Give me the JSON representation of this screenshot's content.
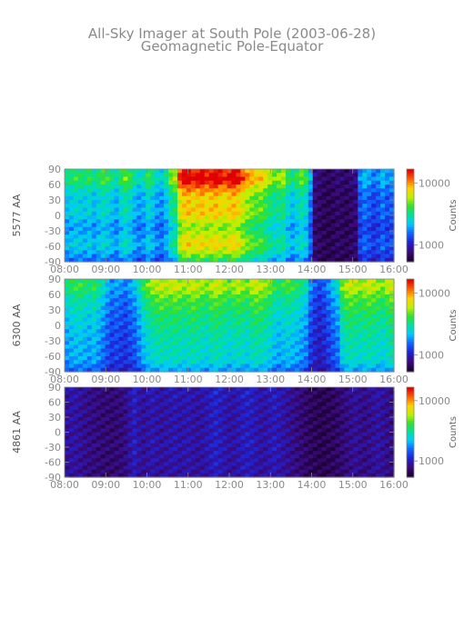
{
  "title": {
    "line1": "All-Sky Imager at South Pole (2003-06-28)",
    "line2": "Geomagnetic Pole-Equator"
  },
  "colors": {
    "text": "#8a8a8a",
    "axis": "#888888",
    "colormap": [
      "#1a0033",
      "#3b0a7a",
      "#2020d0",
      "#1060ff",
      "#00c8ff",
      "#00e0a0",
      "#30e030",
      "#c0f000",
      "#ffd000",
      "#ff6000",
      "#e00000"
    ]
  },
  "chart_data": [
    {
      "type": "heatmap",
      "ylabel": "5577 AA",
      "x_ticks": [
        "08:00",
        "09:00",
        "10:00",
        "11:00",
        "12:00",
        "13:00",
        "14:00",
        "15:00",
        "16:00"
      ],
      "y_ticks": [
        "90",
        "60",
        "30",
        "0",
        "-30",
        "-60",
        "-90"
      ],
      "xlim": [
        "08:00",
        "16:00"
      ],
      "ylim": [
        -90,
        90
      ],
      "colorbar": {
        "label": "Counts",
        "ticks": [
          "10000",
          "1000"
        ]
      },
      "time_profile": [
        0.45,
        0.47,
        0.5,
        0.48,
        0.46,
        0.5,
        0.44,
        0.48,
        0.52,
        0.5,
        0.46,
        0.42,
        0.5,
        0.55,
        0.5,
        0.44,
        0.4,
        0.42,
        0.5,
        0.46,
        0.4,
        0.38,
        0.45,
        0.55,
        0.6,
        0.82,
        0.88,
        0.9,
        0.86,
        0.88,
        0.9,
        0.85,
        0.88,
        0.9,
        0.86,
        0.84,
        0.88,
        0.9,
        0.86,
        0.8,
        0.75,
        0.72,
        0.68,
        0.7,
        0.65,
        0.6,
        0.55,
        0.58,
        0.6,
        0.5,
        0.45,
        0.5,
        0.55,
        0.5,
        0.35,
        0.1,
        0.08,
        0.06,
        0.05,
        0.06,
        0.08,
        0.07,
        0.06,
        0.08,
        0.1,
        0.3,
        0.35,
        0.32,
        0.28,
        0.3,
        0.35,
        0.3,
        0.32
      ],
      "lat_profile": [
        0.8,
        0.85,
        0.9,
        0.82,
        0.7,
        0.62,
        0.55,
        0.5,
        0.48,
        0.5,
        0.52,
        0.5,
        0.45,
        0.38,
        0.32,
        0.3,
        0.35,
        0.4,
        0.45,
        0.48,
        0.42,
        0.35,
        0.25,
        0.15
      ]
    },
    {
      "type": "heatmap",
      "ylabel": "6300 AA",
      "x_ticks": [
        "08:00",
        "09:00",
        "10:00",
        "11:00",
        "12:00",
        "13:00",
        "14:00",
        "15:00",
        "16:00"
      ],
      "y_ticks": [
        "90",
        "60",
        "30",
        "0",
        "-30",
        "-60",
        "-90"
      ],
      "xlim": [
        "08:00",
        "16:00"
      ],
      "ylim": [
        -90,
        90
      ],
      "colorbar": {
        "label": "Counts",
        "ticks": [
          "10000",
          "1000"
        ]
      },
      "time_profile": [
        0.45,
        0.48,
        0.5,
        0.5,
        0.48,
        0.46,
        0.5,
        0.45,
        0.4,
        0.35,
        0.3,
        0.32,
        0.3,
        0.28,
        0.32,
        0.35,
        0.42,
        0.5,
        0.55,
        0.58,
        0.6,
        0.62,
        0.6,
        0.6,
        0.62,
        0.6,
        0.58,
        0.6,
        0.62,
        0.6,
        0.58,
        0.56,
        0.6,
        0.62,
        0.6,
        0.58,
        0.55,
        0.58,
        0.6,
        0.58,
        0.55,
        0.6,
        0.62,
        0.6,
        0.58,
        0.55,
        0.5,
        0.48,
        0.5,
        0.52,
        0.5,
        0.48,
        0.45,
        0.42,
        0.3,
        0.25,
        0.22,
        0.25,
        0.3,
        0.35,
        0.4,
        0.55,
        0.6,
        0.62,
        0.6,
        0.58,
        0.6,
        0.62,
        0.6,
        0.58,
        0.56,
        0.6,
        0.62
      ],
      "lat_profile": [
        0.85,
        0.9,
        0.88,
        0.8,
        0.72,
        0.65,
        0.62,
        0.6,
        0.55,
        0.5,
        0.5,
        0.48,
        0.45,
        0.42,
        0.4,
        0.38,
        0.36,
        0.35,
        0.34,
        0.33,
        0.32,
        0.28,
        0.18,
        0.1
      ]
    },
    {
      "type": "heatmap",
      "ylabel": "4861 AA",
      "x_ticks": [
        "08:00",
        "09:00",
        "10:00",
        "11:00",
        "12:00",
        "13:00",
        "14:00",
        "15:00",
        "16:00"
      ],
      "y_ticks": [
        "90",
        "60",
        "30",
        "0",
        "-30",
        "-60",
        "-90"
      ],
      "xlim": [
        "08:00",
        "16:00"
      ],
      "ylim": [
        -90,
        90
      ],
      "colorbar": {
        "label": "Counts",
        "ticks": [
          "10000",
          "1000"
        ]
      },
      "time_profile": [
        0.18,
        0.2,
        0.2,
        0.18,
        0.16,
        0.15,
        0.14,
        0.13,
        0.12,
        0.12,
        0.11,
        0.12,
        0.13,
        0.15,
        0.2,
        0.25,
        0.2,
        0.18,
        0.2,
        0.22,
        0.2,
        0.19,
        0.2,
        0.21,
        0.22,
        0.2,
        0.21,
        0.22,
        0.2,
        0.19,
        0.2,
        0.22,
        0.24,
        0.26,
        0.24,
        0.22,
        0.2,
        0.2,
        0.22,
        0.24,
        0.25,
        0.24,
        0.22,
        0.2,
        0.2,
        0.22,
        0.24,
        0.22,
        0.2,
        0.18,
        0.16,
        0.14,
        0.12,
        0.1,
        0.08,
        0.07,
        0.06,
        0.06,
        0.07,
        0.08,
        0.1,
        0.12,
        0.14,
        0.16,
        0.18,
        0.16,
        0.15,
        0.16,
        0.18,
        0.2,
        0.18,
        0.16,
        0.15
      ],
      "lat_profile": [
        0.3,
        0.32,
        0.3,
        0.28,
        0.26,
        0.25,
        0.24,
        0.24,
        0.23,
        0.22,
        0.22,
        0.22,
        0.23,
        0.24,
        0.26,
        0.25,
        0.24,
        0.23,
        0.22,
        0.22,
        0.21,
        0.2,
        0.18,
        0.16
      ]
    }
  ]
}
